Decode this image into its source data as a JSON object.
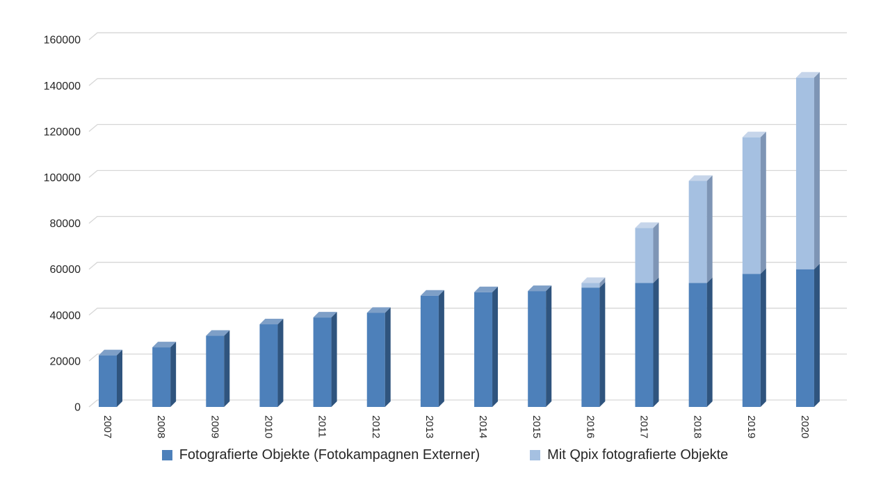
{
  "chart_data": {
    "type": "bar",
    "subtype": "stacked-3d-columns",
    "title": "",
    "xlabel": "",
    "ylabel": "",
    "categories": [
      "2007",
      "2008",
      "2009",
      "2010",
      "2011",
      "2012",
      "2013",
      "2014",
      "2015",
      "2016",
      "2017",
      "2018",
      "2019",
      "2020"
    ],
    "series": [
      {
        "name": "Fotografierte Objekte (Fotokampagnen Externer)",
        "color": "#4d80ba",
        "side_color": "#2f547e",
        "top_color": "#7e9fc7",
        "values": [
          22500,
          26000,
          31000,
          36000,
          39000,
          41000,
          48500,
          50000,
          50500,
          52000,
          54000,
          54000,
          58000,
          60000
        ]
      },
      {
        "name": "Mit Qpix fotografierte Objekte",
        "color": "#a5c0e1",
        "side_color": "#7e95b5",
        "top_color": "#c6d5ea",
        "values": [
          0,
          0,
          0,
          0,
          0,
          0,
          0,
          0,
          0,
          2000,
          24000,
          44500,
          59500,
          83500
        ]
      }
    ],
    "totals": [
      22500,
      26000,
      31000,
      36000,
      39000,
      41000,
      48500,
      50000,
      50500,
      54000,
      78000,
      98500,
      117500,
      143500
    ],
    "ylim": [
      0,
      160000
    ],
    "ytick_step": 20000,
    "yticks": [
      "0",
      "20000",
      "40000",
      "60000",
      "80000",
      "100000",
      "120000",
      "140000",
      "160000"
    ],
    "grid": true,
    "gridline_color": "#d6d6d6",
    "axis_text_color": "#262626",
    "background_color": "#ffffff",
    "legend_position": "bottom",
    "x_label_rotation_deg": 90
  }
}
